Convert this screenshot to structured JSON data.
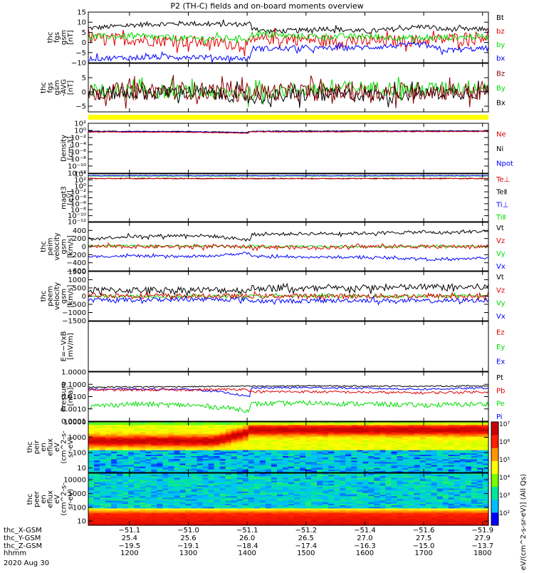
{
  "title": "P2 (TH-C) fields and on-board moments overview",
  "colors": {
    "black": "#000000",
    "red": "#e00000",
    "green": "#00dd00",
    "blue": "#0000ff",
    "darkred": "#880000",
    "yellow": "#ffff00"
  },
  "chart_data": [
    {
      "type": "line",
      "name": "fgs",
      "ylabel": [
        "thc",
        "fgs",
        "gsm",
        "[nT]"
      ],
      "ylim": [
        -10,
        15
      ],
      "yticks": [
        -10,
        -5,
        0,
        5,
        10,
        15
      ],
      "ytick_labels": [
        "−10",
        "−5",
        "0",
        "5",
        "10",
        "15"
      ],
      "legend": [
        {
          "name": "Bt",
          "color": "#000000"
        },
        {
          "name": "bz",
          "color": "#e00000"
        },
        {
          "name": "by",
          "color": "#00dd00"
        },
        {
          "name": "bx",
          "color": "#0000ff"
        }
      ],
      "series": [
        {
          "name": "Bt",
          "color": "#000000",
          "x": [
            1130,
            1200,
            1230,
            1300,
            1330,
            1400,
            1405,
            1407,
            1430,
            1500,
            1530,
            1600,
            1630,
            1700,
            1730,
            1800,
            1810
          ],
          "y": [
            7,
            8.5,
            9,
            9.5,
            9,
            9,
            9.5,
            8,
            5.5,
            6,
            7,
            5.5,
            6,
            8,
            6.5,
            6.5,
            7
          ],
          "noise": 1.2
        },
        {
          "name": "bz",
          "color": "#e00000",
          "x": [
            1130,
            1200,
            1300,
            1400,
            1405,
            1407,
            1430,
            1500,
            1530,
            1600,
            1700,
            1730,
            1800,
            1810
          ],
          "y": [
            2,
            1.5,
            0.5,
            -1,
            -1,
            0,
            2,
            1.5,
            1,
            0.5,
            1,
            1.5,
            3,
            3
          ],
          "noise": 3
        },
        {
          "name": "by",
          "color": "#00dd00",
          "x": [
            1130,
            1200,
            1300,
            1400,
            1405,
            1407,
            1500,
            1600,
            1700,
            1800,
            1810
          ],
          "y": [
            3,
            3,
            2,
            2,
            2,
            4,
            3,
            3,
            2,
            3,
            3
          ],
          "noise": 1.5
        },
        {
          "name": "bx",
          "color": "#0000ff",
          "x": [
            1130,
            1200,
            1300,
            1400,
            1405,
            1407,
            1500,
            1600,
            1700,
            1730,
            1800,
            1810
          ],
          "y": [
            -8,
            -7.5,
            -7,
            -8,
            -8,
            -3,
            -3,
            -2.5,
            -1,
            -4,
            -3,
            -3
          ],
          "noise": 1.3
        }
      ]
    },
    {
      "type": "line",
      "name": "fgs-dsl",
      "ylabel": [
        "thc",
        "fgs",
        "gsm",
        "-AVG",
        "[nT]"
      ],
      "ylim": [
        -7,
        10
      ],
      "yticks": [
        -5,
        0,
        5
      ],
      "ytick_labels": [
        "−5",
        "0",
        "5"
      ],
      "legend": [
        {
          "name": "Bz",
          "color": "#880000"
        },
        {
          "name": "By",
          "color": "#00dd00"
        },
        {
          "name": "Bx",
          "color": "#000000"
        }
      ],
      "series": [
        {
          "name": "By",
          "color": "#00dd00",
          "x": [
            1130,
            1300,
            1400,
            1500,
            1600,
            1700,
            1800,
            1810
          ],
          "y": [
            0.5,
            0,
            -0.5,
            1,
            1.5,
            1,
            2,
            2
          ],
          "noise": 2.5
        },
        {
          "name": "Bx",
          "color": "#000000",
          "x": [
            1130,
            1300,
            1400,
            1405,
            1500,
            1600,
            1700,
            1800,
            1810
          ],
          "y": [
            -0.5,
            0,
            -1.5,
            -2,
            -1,
            -1,
            -0.5,
            0,
            0
          ],
          "noise": 2.5
        },
        {
          "name": "Bz",
          "color": "#880000",
          "x": [
            1130,
            1300,
            1400,
            1500,
            1600,
            1700,
            1800,
            1810
          ],
          "y": [
            0,
            0.5,
            0,
            0,
            0,
            0.5,
            0,
            0
          ],
          "noise": 3.2
        }
      ]
    },
    {
      "type": "line",
      "name": "density",
      "scale": "log",
      "ylabel": [
        "Density",
        "[cm-3]"
      ],
      "ylim": [
        1e-12,
        100
      ],
      "yticks": [
        100,
        1,
        0.01,
        0.0001,
        1e-06,
        1e-08,
        1e-10,
        1e-12
      ],
      "ytick_labels": [
        "10²",
        "10⁰",
        "10⁻²",
        "10⁻⁴",
        "10⁻⁶",
        "10⁻⁸",
        "10⁻¹⁰",
        "10⁻¹²"
      ],
      "legend": [
        {
          "name": "Ne",
          "color": "#e00000"
        },
        {
          "name": "Ni",
          "color": "#000000"
        },
        {
          "name": "Npot",
          "color": "#0000ff"
        }
      ],
      "series": [
        {
          "name": "Ni",
          "color": "#000000",
          "x": [
            1130,
            1300,
            1400,
            1407,
            1500,
            1810
          ],
          "y": [
            0.6,
            0.5,
            0.25,
            0.6,
            0.7,
            0.8
          ],
          "noise": 0.1
        },
        {
          "name": "Npot",
          "color": "#0000ff",
          "x": [
            1130,
            1300,
            1400,
            1407,
            1500,
            1810
          ],
          "y": [
            0.45,
            0.4,
            0.2,
            0.5,
            0.5,
            0.6
          ],
          "noise": 0.1
        },
        {
          "name": "Ne",
          "color": "#e00000",
          "x": [
            1130,
            1300,
            1400,
            1407,
            1500,
            1810
          ],
          "y": [
            0.35,
            0.3,
            0.15,
            0.4,
            0.4,
            0.5
          ],
          "noise": 0.1
        }
      ]
    },
    {
      "type": "line",
      "name": "temperature",
      "scale": "log",
      "ylabel": [
        "magt3",
        "[eV]"
      ],
      "ylim": [
        1e-12,
        10000
      ],
      "yticks": [
        10000,
        100,
        1,
        0.01,
        0.0001,
        1e-06,
        1e-08,
        1e-10,
        1e-12
      ],
      "ytick_labels": [
        "10⁴",
        "10²",
        "10⁰",
        "10⁻²",
        "10⁻⁴",
        "10⁻⁶",
        "10⁻⁸",
        "10⁻¹⁰",
        "10⁻¹²"
      ],
      "legend": [
        {
          "name": "Te⊥",
          "color": "#e00000"
        },
        {
          "name": "TeⅡ",
          "color": "#000000"
        },
        {
          "name": "Ti⊥",
          "color": "#0000ff"
        },
        {
          "name": "TiⅡ",
          "color": "#00dd00"
        }
      ],
      "series": [
        {
          "name": "TiⅡ",
          "color": "#00dd00",
          "x": [
            1130,
            1810
          ],
          "y": [
            2000,
            2000
          ],
          "noise": 0.1
        },
        {
          "name": "Ti⊥",
          "color": "#0000ff",
          "x": [
            1130,
            1810
          ],
          "y": [
            2500,
            2500
          ],
          "noise": 0.1
        },
        {
          "name": "TeⅡ",
          "color": "#000000",
          "x": [
            1130,
            1810
          ],
          "y": [
            300,
            300
          ],
          "noise": 0.1
        },
        {
          "name": "Te⊥",
          "color": "#e00000",
          "x": [
            1130,
            1810
          ],
          "y": [
            250,
            250
          ],
          "noise": 0.1
        }
      ]
    },
    {
      "type": "line",
      "name": "peim-velocity",
      "ylabel": [
        "thc",
        "peim",
        "velocity",
        "gsm",
        "[km/s]"
      ],
      "ylim": [
        -600,
        600
      ],
      "yticks": [
        -600,
        -400,
        -200,
        0,
        200,
        400
      ],
      "ytick_labels": [
        "−600",
        "−400",
        "−200",
        "0",
        "200",
        "400"
      ],
      "legend": [
        {
          "name": "Vt",
          "color": "#000000"
        },
        {
          "name": "Vz",
          "color": "#e00000"
        },
        {
          "name": "Vy",
          "color": "#00dd00"
        },
        {
          "name": "Vx",
          "color": "#0000ff"
        }
      ],
      "series": [
        {
          "name": "Vt",
          "color": "#000000",
          "x": [
            1130,
            1200,
            1300,
            1340,
            1400,
            1405,
            1407,
            1500,
            1600,
            1700,
            1730,
            1800,
            1810
          ],
          "y": [
            200,
            250,
            280,
            260,
            170,
            170,
            300,
            320,
            330,
            360,
            340,
            380,
            380
          ],
          "noise": 40
        },
        {
          "name": "Vy",
          "color": "#00dd00",
          "x": [
            1130,
            1300,
            1400,
            1407,
            1500,
            1600,
            1700,
            1810
          ],
          "y": [
            20,
            10,
            0,
            0,
            10,
            0,
            0,
            0
          ],
          "noise": 25
        },
        {
          "name": "Vz",
          "color": "#e00000",
          "x": [
            1130,
            1300,
            1400,
            1407,
            1500,
            1600,
            1700,
            1810
          ],
          "y": [
            0,
            0,
            0,
            0,
            -30,
            0,
            0,
            0
          ],
          "noise": 45
        },
        {
          "name": "Vx",
          "color": "#0000ff",
          "x": [
            1130,
            1200,
            1300,
            1340,
            1400,
            1405,
            1407,
            1500,
            1600,
            1700,
            1730,
            1800,
            1810
          ],
          "y": [
            -250,
            -230,
            -250,
            -230,
            -160,
            -160,
            -250,
            -260,
            -270,
            -300,
            -330,
            -280,
            -280
          ],
          "noise": 30
        }
      ]
    },
    {
      "type": "line",
      "name": "peem-velocity",
      "ylabel": [
        "thc",
        "peem",
        "velocity",
        "gsm",
        "[km/s]"
      ],
      "ylim": [
        -1500,
        1500
      ],
      "yticks": [
        -1500,
        -1000,
        -500,
        0,
        500,
        1000,
        1500
      ],
      "ytick_labels": [
        "−1500",
        "−1000",
        "−500",
        "0",
        "500",
        "1000",
        "1500"
      ],
      "legend": [
        {
          "name": "Vt",
          "color": "#000000"
        },
        {
          "name": "Vz",
          "color": "#e00000"
        },
        {
          "name": "Vy",
          "color": "#00dd00"
        },
        {
          "name": "Vx",
          "color": "#0000ff"
        }
      ],
      "series": [
        {
          "name": "Vt",
          "color": "#000000",
          "x": [
            1130,
            1300,
            1400,
            1405,
            1407,
            1500,
            1600,
            1700,
            1810
          ],
          "y": [
            350,
            380,
            350,
            330,
            500,
            450,
            500,
            550,
            550
          ],
          "noise": 200
        },
        {
          "name": "Vy",
          "color": "#00dd00",
          "x": [
            1130,
            1300,
            1400,
            1407,
            1500,
            1700,
            1810
          ],
          "y": [
            0,
            0,
            0,
            0,
            0,
            0,
            0
          ],
          "noise": 100
        },
        {
          "name": "Vz",
          "color": "#e00000",
          "x": [
            1130,
            1300,
            1400,
            1407,
            1500,
            1700,
            1810
          ],
          "y": [
            50,
            0,
            0,
            0,
            0,
            0,
            0
          ],
          "noise": 150
        },
        {
          "name": "Vx",
          "color": "#0000ff",
          "x": [
            1130,
            1300,
            1400,
            1407,
            1500,
            1600,
            1700,
            1810
          ],
          "y": [
            -250,
            -200,
            -200,
            -300,
            -300,
            -250,
            -300,
            -250
          ],
          "noise": 130
        }
      ]
    },
    {
      "type": "line",
      "name": "efield",
      "ylabel": [
        "E=−VxB",
        "[mV/m]"
      ],
      "ylim": [
        0,
        1
      ],
      "yticks": [],
      "ytick_labels": [],
      "legend": [
        {
          "name": "Ez",
          "color": "#e00000"
        },
        {
          "name": "Ey",
          "color": "#00dd00"
        },
        {
          "name": "Ex",
          "color": "#0000ff"
        }
      ],
      "series": []
    },
    {
      "type": "line",
      "name": "pressure",
      "scale": "log",
      "ylabel": [
        "Pressure",
        "[nPa]"
      ],
      "ylim": [
        0.0001,
        1
      ],
      "yticks": [
        0.0001,
        0.001,
        0.01,
        0.1,
        1
      ],
      "ytick_labels": [
        "0.0001",
        "0.0010",
        "0.0100",
        "0.1000",
        "1.0000"
      ],
      "legend": [
        {
          "name": "Pt",
          "color": "#000000"
        },
        {
          "name": "Pb",
          "color": "#e00000"
        },
        {
          "name": "Pe",
          "color": "#00dd00"
        },
        {
          "name": "Pi",
          "color": "#0000ff"
        }
      ],
      "series": [
        {
          "name": "Pt",
          "color": "#000000",
          "x": [
            1130,
            1300,
            1400,
            1405,
            1407,
            1500,
            1700,
            1810
          ],
          "y": [
            0.06,
            0.065,
            0.07,
            0.07,
            0.07,
            0.075,
            0.07,
            0.075
          ],
          "noise": 0.05
        },
        {
          "name": "Pi",
          "color": "#0000ff",
          "x": [
            1130,
            1300,
            1400,
            1405,
            1407,
            1500,
            1700,
            1810
          ],
          "y": [
            0.04,
            0.04,
            0.01,
            0.01,
            0.05,
            0.055,
            0.04,
            0.05
          ],
          "noise": 0.08
        },
        {
          "name": "Pb",
          "color": "#e00000",
          "x": [
            1130,
            1300,
            1400,
            1407,
            1500,
            1700,
            1810
          ],
          "y": [
            0.035,
            0.035,
            0.04,
            0.025,
            0.025,
            0.02,
            0.025
          ],
          "noise": 0.1
        },
        {
          "name": "Pe",
          "color": "#00dd00",
          "x": [
            1130,
            1200,
            1300,
            1400,
            1405,
            1407,
            1500,
            1700,
            1810
          ],
          "y": [
            0.0015,
            0.0025,
            0.002,
            0.0008,
            0.0008,
            0.0025,
            0.003,
            0.002,
            0.0025
          ],
          "noise": 0.2
        }
      ]
    },
    {
      "type": "heatmap",
      "name": "peir-spectrogram",
      "scale": "log",
      "ylabel": [
        "thc",
        "peir",
        "en",
        "eflux",
        "eV",
        "(cm^2-s-",
        "sr-eV)"
      ],
      "ylim": [
        5,
        10000
      ],
      "yticks": [
        10,
        100,
        1000,
        10000
      ],
      "ytick_labels": [
        "10",
        "100",
        "1000",
        "10000"
      ]
    },
    {
      "type": "heatmap",
      "name": "peer-spectrogram",
      "scale": "log",
      "ylabel": [
        "thc",
        "peer",
        "en",
        "eflux",
        "eV",
        "(cm^2-s-",
        "sr-eV)"
      ],
      "ylim": [
        5,
        30000
      ],
      "yticks": [
        10,
        100,
        1000,
        10000
      ],
      "ytick_labels": [
        "10",
        "100",
        "1000",
        "10000"
      ]
    }
  ],
  "colorbar": {
    "label": "[eV/(cm^2-s-sr-eV)] (All Qs)",
    "ticks": [
      "10²",
      "10³",
      "10⁴",
      "10⁵",
      "10⁶",
      "10⁷"
    ]
  },
  "x_axis": {
    "xlim": [
      1130,
      1810
    ],
    "row_labels": [
      "thc_X-GSM",
      "thc_Y-GSM",
      "thc_Z-GSM",
      "hhmm"
    ],
    "positions": [
      1200,
      1300,
      1400,
      1500,
      1600,
      1700,
      1800
    ],
    "rows": [
      [
        "−51.1",
        "−51.0",
        "−51.1",
        "−51.2",
        "−51.4",
        "−51.6",
        "−51.9"
      ],
      [
        "25.4",
        "25.6",
        "26.0",
        "26.5",
        "27.0",
        "27.5",
        "27.9"
      ],
      [
        "−19.5",
        "−19.1",
        "−18.4",
        "−17.4",
        "−16.3",
        "−15.0",
        "−13.7"
      ],
      [
        "1200",
        "1300",
        "1400",
        "1500",
        "1600",
        "1700",
        "1800"
      ]
    ],
    "date": "2020 Aug 30"
  }
}
